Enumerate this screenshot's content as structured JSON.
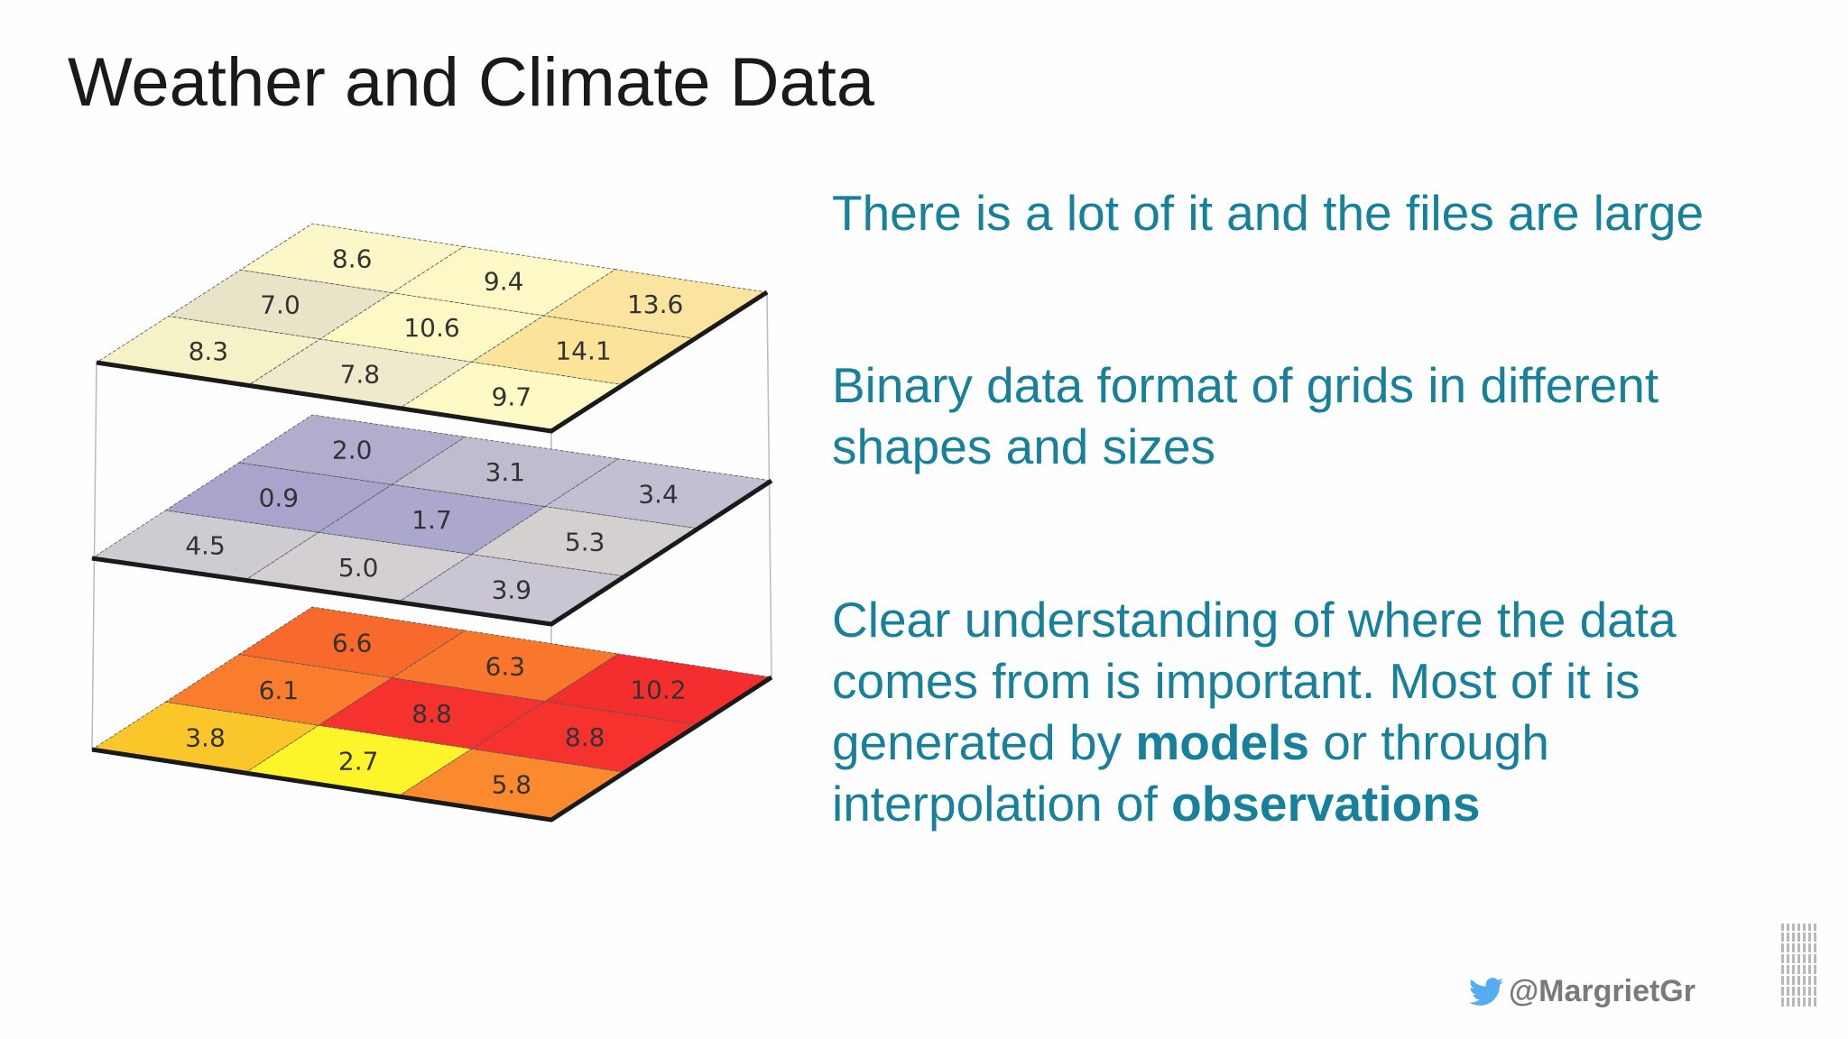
{
  "slide": {
    "title": "Weather and Climate Data",
    "points": [
      {
        "text": "There is a lot of it and the files are large"
      },
      {
        "text": "Binary data format of grids in different shapes and sizes"
      },
      {
        "pre": "Clear understanding of where the data comes from is important. Most of it is generated by ",
        "bold1": "models",
        "mid": " or through interpolation of ",
        "bold2": "observations"
      }
    ],
    "text_color": "#17809a",
    "footer": {
      "twitter_icon": "twitter-bird-icon",
      "handle": "@MargrietGr",
      "twitter_color": "#55acee"
    },
    "logo": {
      "text": "IBM",
      "icon": "ibm-logo"
    }
  },
  "diagram": {
    "layers": [
      {
        "name": "top",
        "rows": [
          {
            "values": [
              "8.6",
              "9.4",
              "13.6"
            ],
            "colors": [
              "#fbf7c8",
              "#fdf9c6",
              "#fae4a0"
            ]
          },
          {
            "values": [
              "7.0",
              "10.6",
              "14.1"
            ],
            "colors": [
              "#e9e3c8",
              "#fdf9c4",
              "#fbe39a"
            ]
          },
          {
            "values": [
              "8.3",
              "7.8",
              "9.7"
            ],
            "colors": [
              "#f6f2c8",
              "#efeacc",
              "#fdfac6"
            ]
          }
        ]
      },
      {
        "name": "middle",
        "rows": [
          {
            "values": [
              "2.0",
              "3.1",
              "3.4"
            ],
            "colors": [
              "#b1adcc",
              "#c0bcd0",
              "#c3bfd3"
            ]
          },
          {
            "values": [
              "0.9",
              "1.7",
              "5.3"
            ],
            "colors": [
              "#a9a4cc",
              "#aca7cc",
              "#d4d0d0"
            ]
          },
          {
            "values": [
              "4.5",
              "5.0",
              "3.9"
            ],
            "colors": [
              "#cfcbd2",
              "#d3cfd3",
              "#c9c5d3"
            ]
          }
        ]
      },
      {
        "name": "bottom",
        "rows": [
          {
            "values": [
              "6.6",
              "6.3",
              "10.2"
            ],
            "colors": [
              "#f76a2c",
              "#f8772c",
              "#f42e2e"
            ]
          },
          {
            "values": [
              "6.1",
              "8.8",
              "8.8"
            ],
            "colors": [
              "#f97d2c",
              "#f6322f",
              "#f6322f"
            ]
          },
          {
            "values": [
              "3.8",
              "2.7",
              "5.8"
            ],
            "colors": [
              "#fbc62a",
              "#fdf52a",
              "#fb8a2e"
            ]
          }
        ]
      }
    ]
  }
}
